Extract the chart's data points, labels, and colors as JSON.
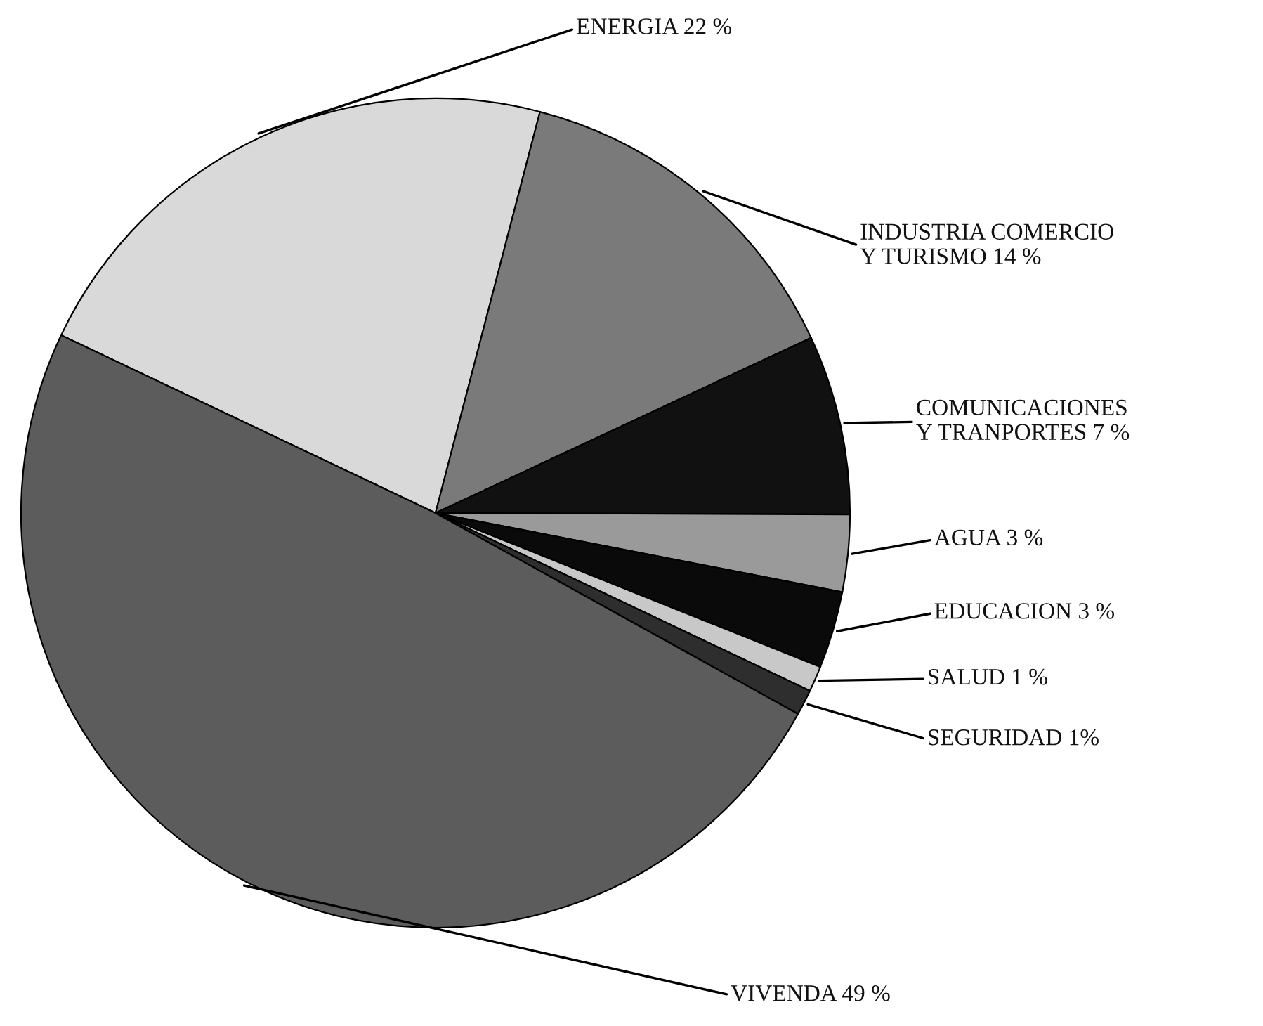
{
  "chart_data": {
    "type": "pie",
    "categories": [
      "ENERGIA 22 %",
      "INDUSTRIA COMERCIO\nY TURISMO 14 %",
      "COMUNICACIONES\nY TRANPORTES 7 %",
      "AGUA 3 %",
      "EDUCACION 3 %",
      "SALUD 1 %",
      "SEGURIDAD 1%",
      "VIVENDA 49 %"
    ],
    "values": [
      22,
      14,
      7,
      3,
      3,
      1,
      1,
      49
    ],
    "colors": [
      "#d9d9d9",
      "#7a7a7a",
      "#111111",
      "#9a9a9a",
      "#0a0a0a",
      "#c8c8c8",
      "#2e2e2e",
      "#5c5c5c"
    ]
  }
}
